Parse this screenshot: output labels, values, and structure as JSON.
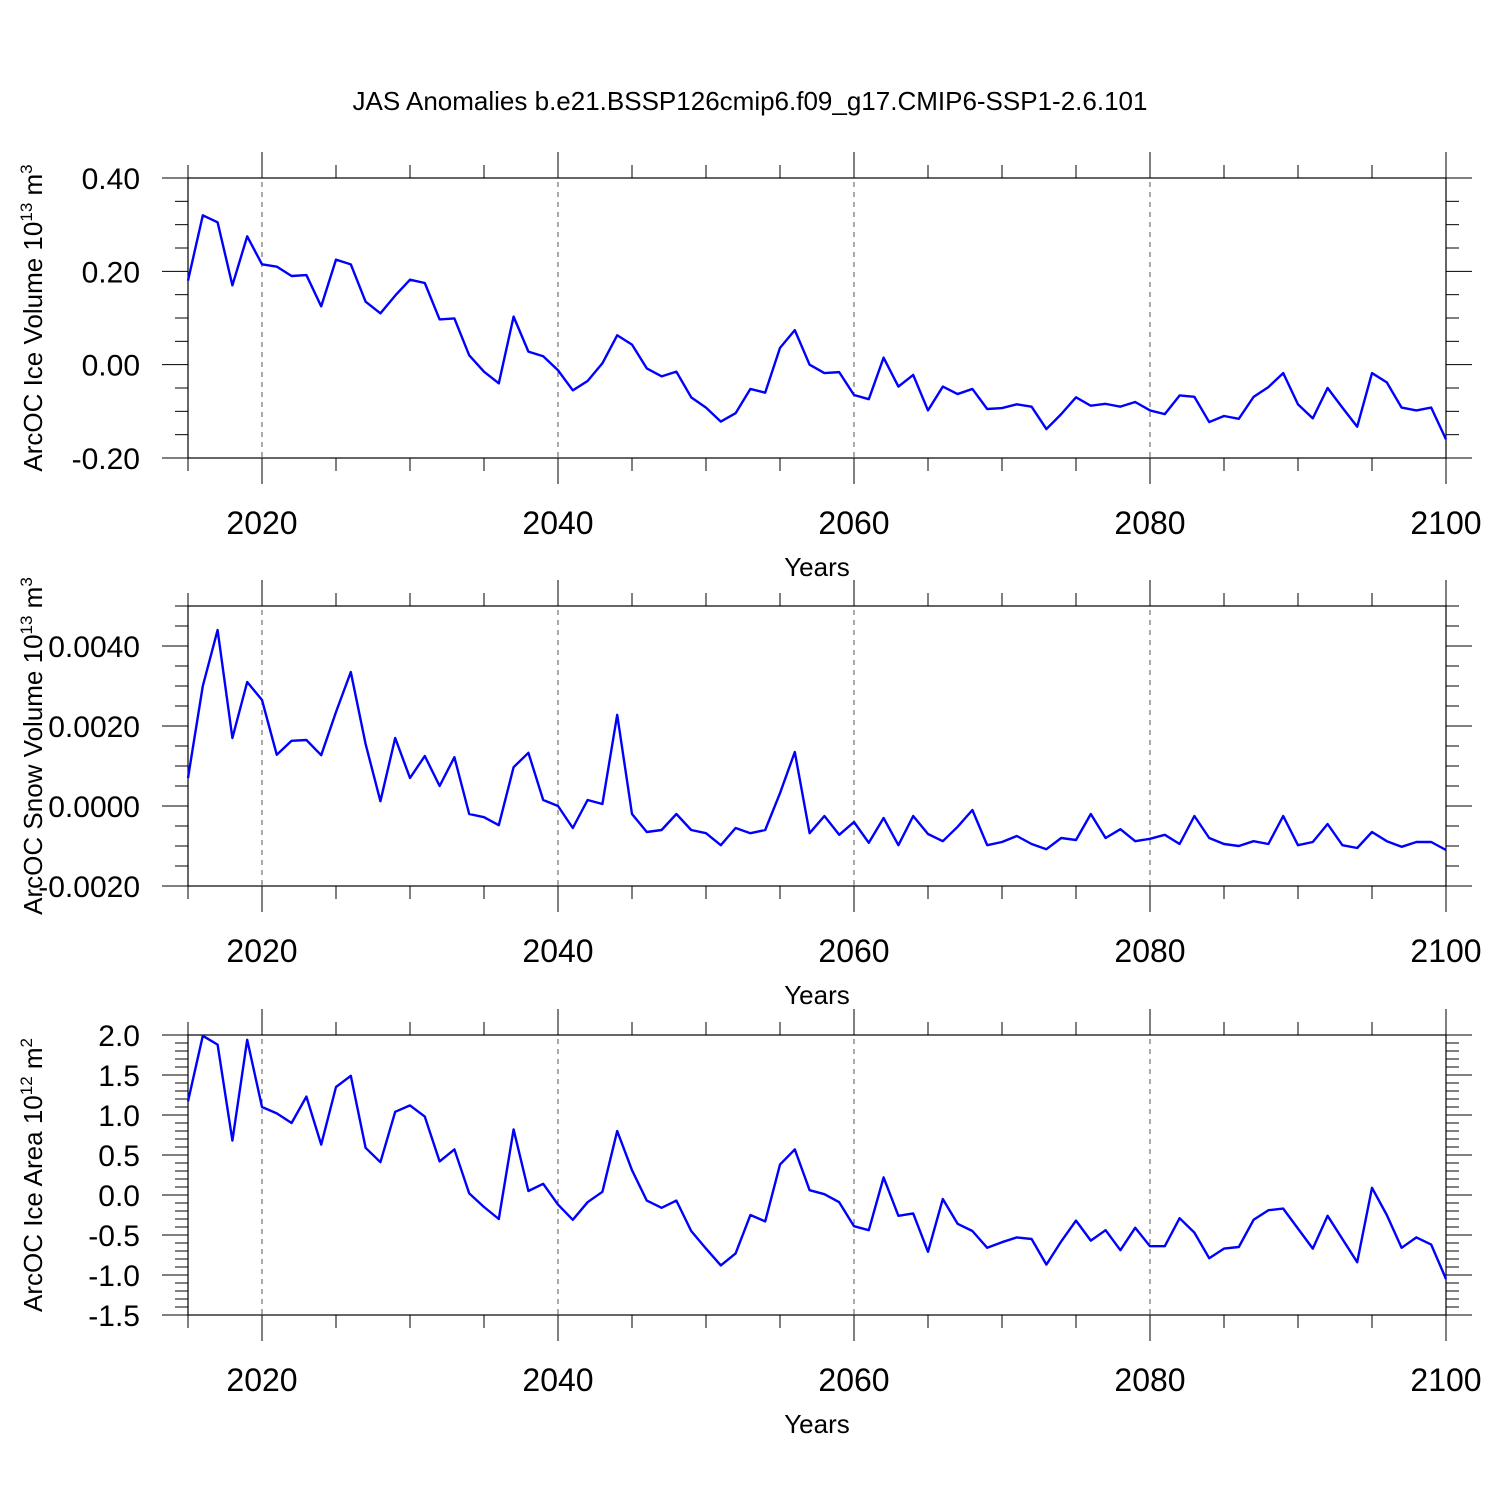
{
  "title": "JAS Anomalies b.e21.BSSP126cmip6.f09_g17.CMIP6-SSP1-2.6.101",
  "colors": {
    "line": "#0000ff",
    "axis": "#000000",
    "grid": "#000000"
  },
  "chart_data": [
    {
      "type": "line",
      "xlabel": "Years",
      "ylabel": "ArcOC Ice Volume 10",
      "ylabel_sup": "13",
      "ylabel_unit": " m",
      "ylabel_unit_sup": "3",
      "xlim": [
        2015,
        2100
      ],
      "ylim": [
        -0.2,
        0.4
      ],
      "x_ticks": [
        2020,
        2040,
        2060,
        2080,
        2100
      ],
      "x_tick_labels": [
        "2020",
        "2040",
        "2060",
        "2080",
        "2100"
      ],
      "y_ticks": [
        -0.2,
        0.0,
        0.2,
        0.4
      ],
      "y_tick_labels": [
        "-0.20",
        "0.00",
        "0.20",
        "0.40"
      ],
      "grid": "dashed vertical at major x ticks",
      "series": [
        {
          "values": [
            0.18,
            0.32,
            0.305,
            0.17,
            0.275,
            0.215,
            0.21,
            0.19,
            0.192,
            0.125,
            0.225,
            0.215,
            0.135,
            0.11,
            0.148,
            0.182,
            0.175,
            0.097,
            0.099,
            0.02,
            -0.015,
            -0.04,
            0.103,
            0.028,
            0.018,
            -0.012,
            -0.055,
            -0.035,
            0.003,
            0.063,
            0.043,
            -0.008,
            -0.025,
            -0.015,
            -0.07,
            -0.092,
            -0.122,
            -0.104,
            -0.052,
            -0.06,
            0.036,
            0.074,
            0.0,
            -0.018,
            -0.016,
            -0.065,
            -0.074,
            0.015,
            -0.047,
            -0.022,
            -0.098,
            -0.047,
            -0.063,
            -0.052,
            -0.095,
            -0.093,
            -0.085,
            -0.09,
            -0.138,
            -0.106,
            -0.07,
            -0.088,
            -0.084,
            -0.09,
            -0.08,
            -0.098,
            -0.106,
            -0.066,
            -0.069,
            -0.123,
            -0.11,
            -0.116,
            -0.069,
            -0.048,
            -0.018,
            -0.085,
            -0.115,
            -0.05,
            -0.092,
            -0.133,
            -0.018,
            -0.038,
            -0.092,
            -0.098,
            -0.092,
            -0.16
          ]
        }
      ]
    },
    {
      "type": "line",
      "xlabel": "Years",
      "ylabel": "ArcOC Snow Volume 10",
      "ylabel_sup": "13",
      "ylabel_unit": " m",
      "ylabel_unit_sup": "3",
      "xlim": [
        2015,
        2100
      ],
      "ylim": [
        -0.002,
        0.005
      ],
      "x_ticks": [
        2020,
        2040,
        2060,
        2080,
        2100
      ],
      "x_tick_labels": [
        "2020",
        "2040",
        "2060",
        "2080",
        "2100"
      ],
      "y_ticks": [
        -0.002,
        0.0,
        0.002,
        0.004
      ],
      "y_tick_labels": [
        "-0.0020",
        "0.0000",
        "0.0020",
        "0.0040"
      ],
      "grid": "dashed vertical at major x ticks",
      "series": [
        {
          "values": [
            0.0007,
            0.003,
            0.0044,
            0.0017,
            0.0031,
            0.00265,
            0.00128,
            0.00163,
            0.00165,
            0.00127,
            0.00235,
            0.00335,
            0.00155,
            0.00012,
            0.0017,
            0.0007,
            0.00125,
            0.0005,
            0.00122,
            -0.0002,
            -0.00028,
            -0.00048,
            0.00097,
            0.00133,
            0.00015,
            0.0,
            -0.00055,
            0.00015,
            5e-05,
            0.00228,
            -0.0002,
            -0.00065,
            -0.0006,
            -0.0002,
            -0.0006,
            -0.00068,
            -0.00098,
            -0.00055,
            -0.00068,
            -0.0006,
            0.00032,
            0.00135,
            -0.00068,
            -0.00025,
            -0.00072,
            -0.0004,
            -0.00092,
            -0.0003,
            -0.00098,
            -0.00025,
            -0.0007,
            -0.00088,
            -0.00052,
            -0.0001,
            -0.00098,
            -0.0009,
            -0.00075,
            -0.00095,
            -0.00108,
            -0.0008,
            -0.00085,
            -0.0002,
            -0.0008,
            -0.00058,
            -0.00088,
            -0.00082,
            -0.00072,
            -0.00095,
            -0.00025,
            -0.0008,
            -0.00095,
            -0.001,
            -0.00088,
            -0.00095,
            -0.00025,
            -0.00098,
            -0.0009,
            -0.00045,
            -0.00098,
            -0.00105,
            -0.00065,
            -0.00088,
            -0.00102,
            -0.0009,
            -0.0009,
            -0.0011
          ]
        }
      ]
    },
    {
      "type": "line",
      "xlabel": "Years",
      "ylabel": "ArcOC Ice Area 10",
      "ylabel_sup": "12",
      "ylabel_unit": " m",
      "ylabel_unit_sup": "2",
      "xlim": [
        2015,
        2100
      ],
      "ylim": [
        -1.5,
        2.0
      ],
      "x_ticks": [
        2020,
        2040,
        2060,
        2080,
        2100
      ],
      "x_tick_labels": [
        "2020",
        "2040",
        "2060",
        "2080",
        "2100"
      ],
      "y_ticks": [
        -1.5,
        -1.0,
        -0.5,
        0.0,
        0.5,
        1.0,
        1.5,
        2.0
      ],
      "y_tick_labels": [
        "-1.5",
        "-1.0",
        "-0.5",
        "0.0",
        "0.5",
        "1.0",
        "1.5",
        "2.0"
      ],
      "grid": "dashed vertical at major x ticks",
      "series": [
        {
          "values": [
            1.17,
            1.99,
            1.88,
            0.68,
            1.94,
            1.1,
            1.02,
            0.9,
            1.23,
            0.63,
            1.35,
            1.49,
            0.59,
            0.41,
            1.04,
            1.12,
            0.98,
            0.42,
            0.57,
            0.02,
            -0.15,
            -0.3,
            0.82,
            0.05,
            0.14,
            -0.12,
            -0.31,
            -0.09,
            0.04,
            0.8,
            0.31,
            -0.07,
            -0.16,
            -0.07,
            -0.45,
            -0.67,
            -0.88,
            -0.73,
            -0.25,
            -0.33,
            0.38,
            0.57,
            0.06,
            0.01,
            -0.09,
            -0.39,
            -0.44,
            0.22,
            -0.26,
            -0.23,
            -0.71,
            -0.05,
            -0.36,
            -0.45,
            -0.66,
            -0.59,
            -0.53,
            -0.55,
            -0.87,
            -0.58,
            -0.32,
            -0.57,
            -0.44,
            -0.69,
            -0.41,
            -0.64,
            -0.64,
            -0.29,
            -0.47,
            -0.79,
            -0.67,
            -0.65,
            -0.31,
            -0.19,
            -0.17,
            -0.42,
            -0.67,
            -0.26,
            -0.55,
            -0.84,
            0.09,
            -0.25,
            -0.66,
            -0.53,
            -0.62,
            -1.05
          ]
        }
      ]
    }
  ]
}
